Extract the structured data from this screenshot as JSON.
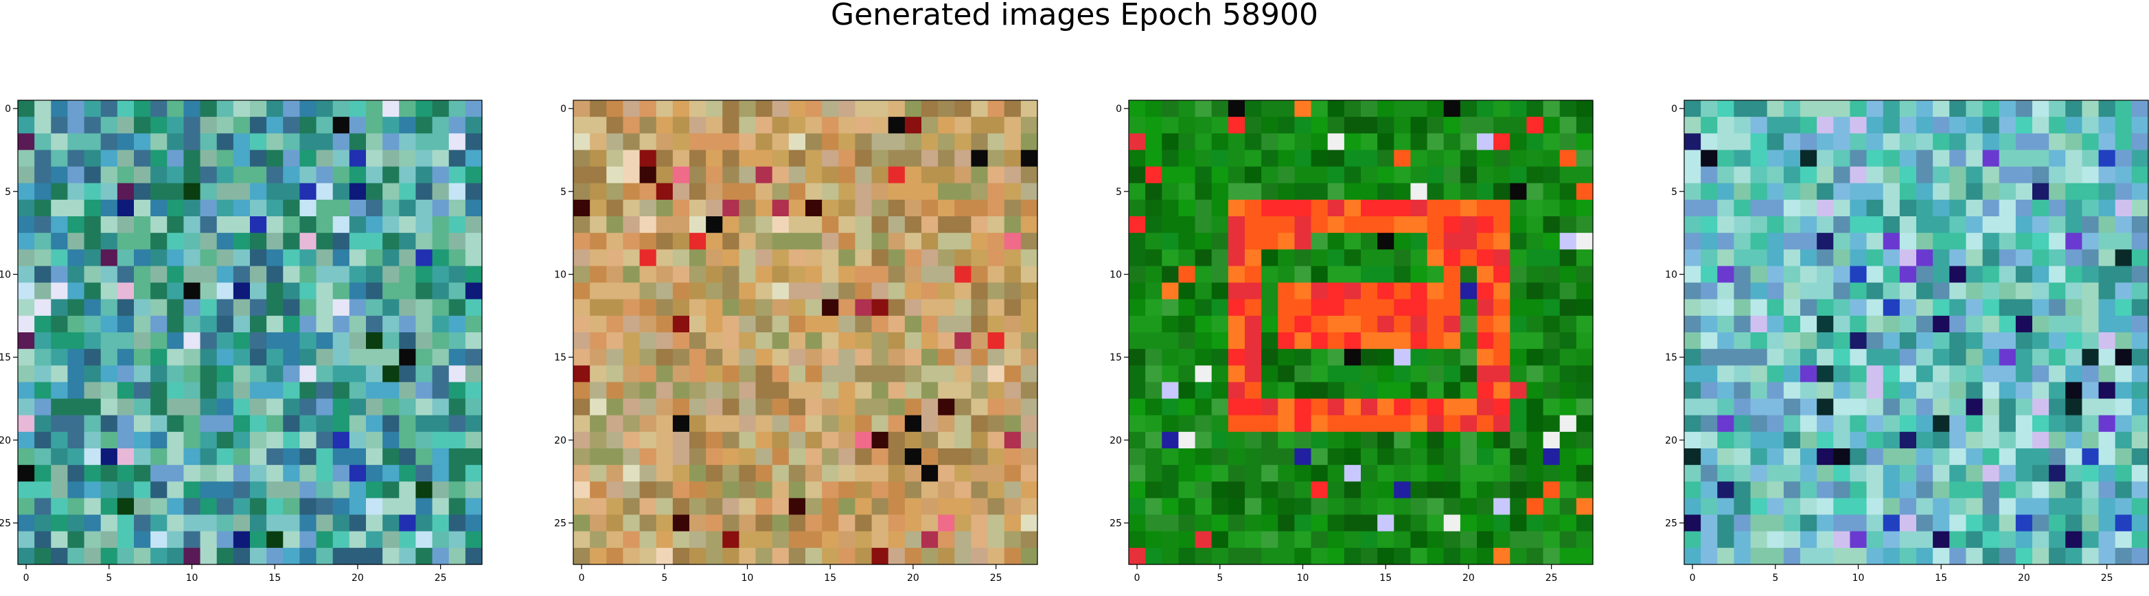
{
  "figure": {
    "title": "Generated images Epoch 58900"
  },
  "panels": [
    {
      "name": "generated-image-1",
      "palette": [
        "#3aa3a0",
        "#5fbcae",
        "#2e8d8a",
        "#7cc6c8",
        "#4aa8c8",
        "#2f7fa6",
        "#5bb58d",
        "#8ec9b1",
        "#3b6f8f",
        "#1e9a74",
        "#a8d8c8",
        "#4fc7b5",
        "#6b9fd0",
        "#2c5f7c",
        "#87b7a2",
        "#1f7a5a"
      ],
      "accents": [
        "#0d1a7a",
        "#0a3d0f",
        "#e6e6f8",
        "#e8b8d8",
        "#0a0a0a",
        "#5a1a55",
        "#2030b0",
        "#c5e4f5"
      ]
    },
    {
      "name": "generated-image-2",
      "palette": [
        "#b7934e",
        "#c9a35a",
        "#d8a35c",
        "#9f8a55",
        "#cfa06a",
        "#d9b37a",
        "#a7a068",
        "#c88a4a",
        "#b5b08a",
        "#d6c08c",
        "#8f9a5a",
        "#e0b080",
        "#caa88a",
        "#9e7a45",
        "#c0c090",
        "#d89860"
      ],
      "accents": [
        "#8a0f0f",
        "#3a0505",
        "#f06a8a",
        "#e82a2a",
        "#0a0a0a",
        "#f0d6b6",
        "#b03050",
        "#e0e0c0"
      ]
    },
    {
      "name": "generated-image-3",
      "palette": [
        "#0a7a0a",
        "#128a12",
        "#1b9a1b",
        "#0b6b0b",
        "#158015",
        "#0e8f20",
        "#2a8f2a",
        "#066206",
        "#0f9a0f",
        "#1a7a1a",
        "#0c7010",
        "#22a022",
        "#0a5c0a",
        "#178e17",
        "#3aa03a",
        "#0b8a0b"
      ],
      "accents": [
        "#ff2a2a",
        "#ff5a1a",
        "#e8303a",
        "#ff7a22",
        "#0a0a0a",
        "#c8c8ff",
        "#f0f0f0",
        "#2020a0"
      ]
    },
    {
      "name": "generated-image-4",
      "palette": [
        "#5fc8b8",
        "#7ad0c0",
        "#3aa6a0",
        "#8fd6d0",
        "#4fb0c8",
        "#6f9fd0",
        "#a8e0d8",
        "#3cc0a0",
        "#7fbbe0",
        "#5a8fb0",
        "#9ed8c0",
        "#48d0b8",
        "#b8e8e8",
        "#2f8f8a",
        "#6ab8d8",
        "#80c8a8"
      ],
      "accents": [
        "#0a0a1a",
        "#1a0a5a",
        "#6a3ad0",
        "#0a2a2a",
        "#1a1a6a",
        "#d0c0f0",
        "#2040c0",
        "#0a3a3a"
      ]
    }
  ],
  "axes": {
    "x_ticks": [
      "0",
      "5",
      "10",
      "15",
      "20",
      "25"
    ],
    "y_ticks": [
      "0",
      "5",
      "10",
      "15",
      "20",
      "25"
    ],
    "xlim": [
      -0.5,
      27.5
    ],
    "ylim": [
      27.5,
      -0.5
    ],
    "grid_cells": 28
  }
}
